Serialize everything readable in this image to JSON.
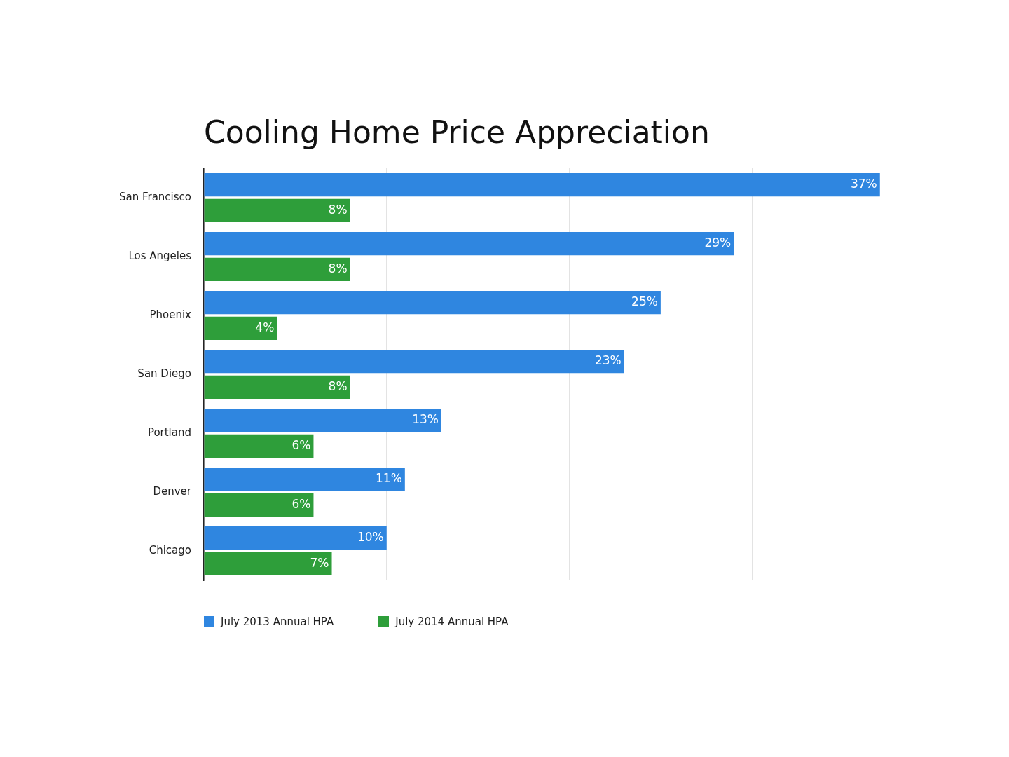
{
  "chart_data": {
    "type": "bar",
    "orientation": "horizontal",
    "title": "Cooling Home Price Appreciation",
    "categories": [
      "San Francisco",
      "Los Angeles",
      "Phoenix",
      "San Diego",
      "Portland",
      "Denver",
      "Chicago"
    ],
    "series": [
      {
        "name": "July 2013 Annual HPA",
        "color": "#2f86e0",
        "values": [
          37,
          29,
          25,
          23,
          13,
          11,
          10
        ],
        "value_labels": [
          "37%",
          "29%",
          "25%",
          "23%",
          "13%",
          "11%",
          "10%"
        ]
      },
      {
        "name": "July 2014 Annual HPA",
        "color": "#2e9e3a",
        "values": [
          8,
          8,
          4,
          8,
          6,
          6,
          7
        ],
        "value_labels": [
          "8%",
          "8%",
          "4%",
          "8%",
          "6%",
          "6%",
          "7%"
        ]
      }
    ],
    "tick_labels": "y",
    "grid": "x",
    "legend": "bottom left"
  }
}
